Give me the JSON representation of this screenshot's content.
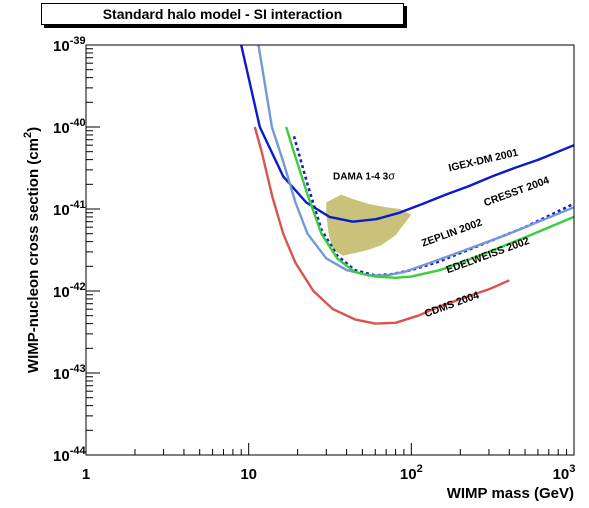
{
  "chart_data": {
    "type": "line",
    "title": "Standard halo model - SI interaction",
    "xlabel": "WIMP mass (GeV)",
    "ylabel_main": "WIMP-nucleon cross section (cm",
    "ylabel_exp": "2",
    "ylabel_close": ")",
    "xscale": "log",
    "yscale": "log",
    "xlim": [
      1,
      1000
    ],
    "ylim": [
      1e-44,
      1e-39
    ],
    "x_ticks": [
      {
        "value": 1,
        "base": "1",
        "exp": ""
      },
      {
        "value": 10,
        "base": "10",
        "exp": ""
      },
      {
        "value": 100,
        "base": "10",
        "exp": "2"
      },
      {
        "value": 1000,
        "base": "10",
        "exp": "3"
      }
    ],
    "y_ticks": [
      {
        "value": 1e-44,
        "base": "10",
        "exp": "-44"
      },
      {
        "value": 1e-43,
        "base": "10",
        "exp": "-43"
      },
      {
        "value": 1e-42,
        "base": "10",
        "exp": "-42"
      },
      {
        "value": 1e-41,
        "base": "10",
        "exp": "-41"
      },
      {
        "value": 1e-40,
        "base": "10",
        "exp": "-40"
      },
      {
        "value": 1e-39,
        "base": "10",
        "exp": "-39"
      }
    ],
    "series": [
      {
        "name": "IGEX-DM 2001",
        "color": "#0a1acc",
        "dash": false,
        "points": [
          [
            9.0,
            1.1e-39
          ],
          [
            11.7,
            1e-40
          ],
          [
            16.3,
            2.5e-41
          ],
          [
            22.6,
            1.2e-41
          ],
          [
            31.4,
            8e-42
          ],
          [
            43.7,
            7e-42
          ],
          [
            60.7,
            7.5e-42
          ],
          [
            84.3,
            9e-42
          ],
          [
            117,
            1.15e-41
          ],
          [
            163,
            1.5e-41
          ],
          [
            226,
            1.9e-41
          ],
          [
            314,
            2.5e-41
          ],
          [
            437,
            3.2e-41
          ],
          [
            607,
            4e-41
          ],
          [
            1000,
            6e-41
          ]
        ]
      },
      {
        "name": "CRESST 2004",
        "color": "#1a1acc",
        "dash": true,
        "points": [
          [
            19,
            7.7e-41
          ],
          [
            23,
            2e-41
          ],
          [
            28,
            5.6e-42
          ],
          [
            35,
            2.7e-42
          ],
          [
            45,
            1.8e-42
          ],
          [
            60,
            1.55e-42
          ],
          [
            75,
            1.6e-42
          ],
          [
            100,
            1.8e-42
          ],
          [
            150,
            2.3e-42
          ],
          [
            200,
            2.9e-42
          ],
          [
            300,
            4e-42
          ],
          [
            500,
            6e-42
          ],
          [
            1000,
            1.16e-41
          ]
        ]
      },
      {
        "name": "ZEPLIN 2002",
        "color": "#7399d9",
        "dash": false,
        "points": [
          [
            11.5,
            1.1e-39
          ],
          [
            13.9,
            1e-40
          ],
          [
            16.3,
            3.8e-41
          ],
          [
            19.4,
            1.2e-41
          ],
          [
            23,
            5e-42
          ],
          [
            30,
            2.5e-42
          ],
          [
            40,
            1.8e-42
          ],
          [
            55,
            1.55e-42
          ],
          [
            70,
            1.55e-42
          ],
          [
            90,
            1.7e-42
          ],
          [
            130,
            2.2e-42
          ],
          [
            200,
            3e-42
          ],
          [
            400,
            5e-42
          ],
          [
            1000,
            1.05e-41
          ]
        ]
      },
      {
        "name": "EDELWEISS 2002",
        "color": "#3ccc3c",
        "dash": false,
        "points": [
          [
            17,
            1e-40
          ],
          [
            19,
            4.9e-41
          ],
          [
            23,
            1.5e-41
          ],
          [
            28,
            5e-42
          ],
          [
            35,
            2.5e-42
          ],
          [
            45,
            1.7e-42
          ],
          [
            60,
            1.5e-42
          ],
          [
            80,
            1.45e-42
          ],
          [
            100,
            1.5e-42
          ],
          [
            150,
            1.8e-42
          ],
          [
            200,
            2.2e-42
          ],
          [
            300,
            3e-42
          ],
          [
            500,
            4.5e-42
          ],
          [
            1000,
            8e-42
          ]
        ]
      },
      {
        "name": "CDMS 2004",
        "color": "#d9534f",
        "dash": false,
        "points": [
          [
            10.9,
            1e-40
          ],
          [
            12,
            5.1e-41
          ],
          [
            14,
            1.4e-41
          ],
          [
            16.3,
            5e-42
          ],
          [
            19.4,
            2.2e-42
          ],
          [
            25,
            1e-42
          ],
          [
            33,
            6e-43
          ],
          [
            45,
            4.5e-43
          ],
          [
            60,
            4e-43
          ],
          [
            80,
            4.1e-43
          ],
          [
            110,
            5e-43
          ],
          [
            150,
            6.5e-43
          ],
          [
            220,
            8.5e-43
          ],
          [
            300,
            1.05e-42
          ],
          [
            400,
            1.35e-42
          ]
        ]
      }
    ],
    "regions": [
      {
        "name": "DAMA 1-4 3σ",
        "color": "#c8c27a",
        "points": [
          [
            30,
            1.2e-41
          ],
          [
            37,
            1.5e-41
          ],
          [
            45,
            1.3e-41
          ],
          [
            55,
            1.15e-41
          ],
          [
            70,
            1.05e-41
          ],
          [
            85,
            1e-41
          ],
          [
            100,
            8.5e-42
          ],
          [
            90,
            6.5e-42
          ],
          [
            80,
            4.8e-42
          ],
          [
            65,
            3.6e-42
          ],
          [
            55,
            3.2e-42
          ],
          [
            45,
            2.9e-42
          ],
          [
            38,
            2.7e-42
          ],
          [
            33,
            3.2e-42
          ],
          [
            31,
            5e-42
          ],
          [
            30,
            8.5e-42
          ]
        ]
      }
    ],
    "labels": [
      {
        "text": "IGEX-DM 2001",
        "x": 280,
        "y": 3.6e-41,
        "angle": -13
      },
      {
        "text": "CRESST 2004",
        "x": 450,
        "y": 1.5e-41,
        "angle": -20
      },
      {
        "text": "ZEPLIN 2002",
        "x": 180,
        "y": 4.7e-42,
        "angle": -20
      },
      {
        "text": "EDELWEISS 2002",
        "x": 300,
        "y": 2.5e-42,
        "angle": -20
      },
      {
        "text": "CDMS 2004",
        "x": 180,
        "y": 6.3e-43,
        "angle": -20
      }
    ],
    "dama_label": {
      "main": "DAMA 1-4 3",
      "symbol": "σ",
      "x": 33,
      "y": 2.3e-41
    },
    "grid": false,
    "legend": "none"
  }
}
